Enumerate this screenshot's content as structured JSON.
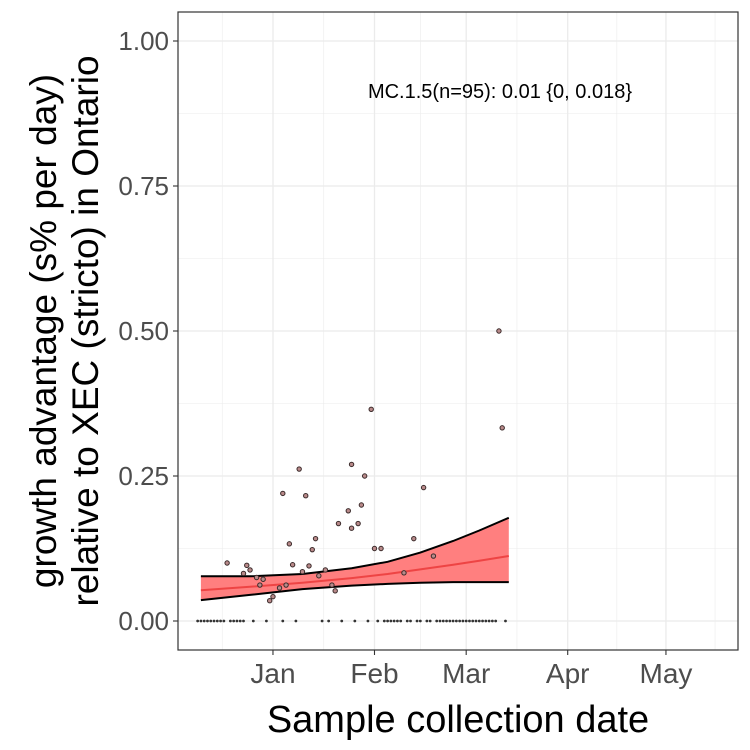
{
  "chart_data": {
    "type": "scatter",
    "title": "",
    "annotation": "MC.1.5(n=95): 0.01 {0, 0.018}",
    "xlabel": "Sample collection date",
    "ylabel_lines": [
      "growth advantage (s% per day)",
      "relative to XEC (stricto) in Ontario"
    ],
    "x_ticks": [
      {
        "label": "Jan",
        "date": "2025-01-01"
      },
      {
        "label": "Feb",
        "date": "2025-02-01"
      },
      {
        "label": "Mar",
        "date": "2025-03-01"
      },
      {
        "label": "Apr",
        "date": "2025-04-01"
      },
      {
        "label": "May",
        "date": "2025-05-01"
      }
    ],
    "y_ticks": [
      "0.00",
      "0.25",
      "0.50",
      "0.75",
      "1.00"
    ],
    "xlim": [
      "2024-12-03",
      "2025-05-23"
    ],
    "ylim": [
      -0.05,
      1.05
    ],
    "grid": true,
    "colors": {
      "ribbon": "#ff7f7f",
      "fit_line": "#ee4444",
      "ribbon_edge": "#000000",
      "point_fill": "#b98a8a",
      "point_stroke": "#3a2a2a",
      "panel_border": "#333333",
      "grid": "#ebebeb"
    },
    "ribbon": {
      "x": [
        "2024-12-10",
        "2024-12-25",
        "2025-01-10",
        "2025-01-25",
        "2025-02-05",
        "2025-02-15",
        "2025-02-25",
        "2025-03-05",
        "2025-03-14"
      ],
      "lower": [
        0.036,
        0.045,
        0.055,
        0.061,
        0.064,
        0.066,
        0.067,
        0.067,
        0.067
      ],
      "upper": [
        0.077,
        0.077,
        0.081,
        0.091,
        0.102,
        0.118,
        0.138,
        0.156,
        0.178
      ],
      "fit": [
        0.053,
        0.059,
        0.066,
        0.074,
        0.081,
        0.089,
        0.097,
        0.104,
        0.112
      ]
    },
    "points": [
      {
        "x": "2024-12-18",
        "y": 0.1
      },
      {
        "x": "2024-12-23",
        "y": 0.082
      },
      {
        "x": "2024-12-24",
        "y": 0.096
      },
      {
        "x": "2024-12-25",
        "y": 0.088
      },
      {
        "x": "2024-12-27",
        "y": 0.075
      },
      {
        "x": "2024-12-28",
        "y": 0.062
      },
      {
        "x": "2024-12-29",
        "y": 0.072
      },
      {
        "x": "2024-12-31",
        "y": 0.035
      },
      {
        "x": "2025-01-01",
        "y": 0.042
      },
      {
        "x": "2025-01-03",
        "y": 0.057
      },
      {
        "x": "2025-01-04",
        "y": 0.22
      },
      {
        "x": "2025-01-05",
        "y": 0.062
      },
      {
        "x": "2025-01-06",
        "y": 0.133
      },
      {
        "x": "2025-01-07",
        "y": 0.097
      },
      {
        "x": "2025-01-09",
        "y": 0.262
      },
      {
        "x": "2025-01-10",
        "y": 0.085
      },
      {
        "x": "2025-01-11",
        "y": 0.216
      },
      {
        "x": "2025-01-12",
        "y": 0.095
      },
      {
        "x": "2025-01-13",
        "y": 0.123
      },
      {
        "x": "2025-01-14",
        "y": 0.142
      },
      {
        "x": "2025-01-15",
        "y": 0.078
      },
      {
        "x": "2025-01-17",
        "y": 0.088
      },
      {
        "x": "2025-01-19",
        "y": 0.062
      },
      {
        "x": "2025-01-20",
        "y": 0.052
      },
      {
        "x": "2025-01-21",
        "y": 0.168
      },
      {
        "x": "2025-01-24",
        "y": 0.19
      },
      {
        "x": "2025-01-25",
        "y": 0.27
      },
      {
        "x": "2025-01-25",
        "y": 0.16
      },
      {
        "x": "2025-01-27",
        "y": 0.168
      },
      {
        "x": "2025-01-28",
        "y": 0.2
      },
      {
        "x": "2025-01-29",
        "y": 0.25
      },
      {
        "x": "2025-01-31",
        "y": 0.365
      },
      {
        "x": "2025-02-01",
        "y": 0.125
      },
      {
        "x": "2025-02-03",
        "y": 0.125
      },
      {
        "x": "2025-02-10",
        "y": 0.083
      },
      {
        "x": "2025-02-13",
        "y": 0.142
      },
      {
        "x": "2025-02-16",
        "y": 0.23
      },
      {
        "x": "2025-02-19",
        "y": 0.112
      },
      {
        "x": "2025-03-11",
        "y": 0.5
      },
      {
        "x": "2025-03-12",
        "y": 0.333
      }
    ],
    "zero_points_x": [
      "2024-12-09",
      "2024-12-10",
      "2024-12-11",
      "2024-12-12",
      "2024-12-13",
      "2024-12-14",
      "2024-12-15",
      "2024-12-16",
      "2024-12-17",
      "2024-12-19",
      "2024-12-20",
      "2024-12-21",
      "2024-12-22",
      "2024-12-23",
      "2024-12-26",
      "2024-12-30",
      "2025-01-04",
      "2025-01-08",
      "2025-01-16",
      "2025-01-18",
      "2025-01-22",
      "2025-01-26",
      "2025-01-30",
      "2025-02-02",
      "2025-02-04",
      "2025-02-05",
      "2025-02-06",
      "2025-02-07",
      "2025-02-08",
      "2025-02-09",
      "2025-02-11",
      "2025-02-12",
      "2025-02-14",
      "2025-02-15",
      "2025-02-17",
      "2025-02-18",
      "2025-02-20",
      "2025-02-21",
      "2025-02-22",
      "2025-02-23",
      "2025-02-24",
      "2025-02-25",
      "2025-02-26",
      "2025-02-27",
      "2025-02-28",
      "2025-03-01",
      "2025-03-02",
      "2025-03-03",
      "2025-03-04",
      "2025-03-05",
      "2025-03-06",
      "2025-03-07",
      "2025-03-08",
      "2025-03-09",
      "2025-03-10",
      "2025-03-13"
    ]
  }
}
